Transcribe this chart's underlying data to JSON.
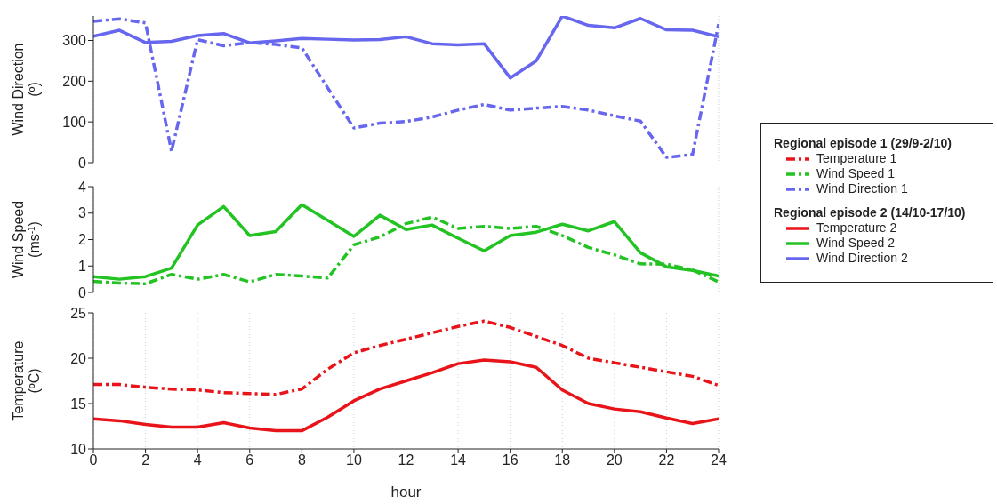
{
  "chart_data": [
    {
      "type": "line",
      "ylabel": "Wind Direction\n(º)",
      "legend_title": "Regional episode 1 (29/9-2/10)",
      "x": [
        0,
        1,
        2,
        3,
        4,
        5,
        6,
        7,
        8,
        9,
        10,
        11,
        12,
        13,
        14,
        15,
        16,
        17,
        18,
        19,
        20,
        21,
        22,
        23,
        24
      ],
      "xlim": [
        0,
        24
      ],
      "xticks": [
        0,
        2,
        4,
        6,
        8,
        10,
        12,
        14,
        16,
        18,
        20,
        22,
        24
      ],
      "ylim": [
        0,
        360
      ],
      "yticks": [
        0,
        100,
        200,
        300
      ],
      "tick_labels": "y",
      "grid": "x",
      "marker": "none",
      "legend": "right",
      "series": [
        {
          "name": "Wind Direction 1",
          "color": "#6666ee",
          "line_style": "dashed",
          "values": [
            347,
            353,
            343,
            28,
            302,
            287,
            295,
            290,
            282,
            183,
            85,
            97,
            101,
            112,
            129,
            143,
            129,
            134,
            138,
            129,
            115,
            102,
            13,
            20,
            340
          ]
        },
        {
          "name": "Wind Direction 2",
          "color": "#6666ee",
          "line_style": "solid",
          "values": [
            310,
            325,
            295,
            298,
            312,
            317,
            294,
            299,
            305,
            303,
            301,
            302,
            309,
            292,
            289,
            292,
            208,
            250,
            360,
            337,
            331,
            354,
            326,
            325,
            309
          ]
        }
      ]
    },
    {
      "type": "line",
      "ylabel": "Wind Speed\n(ms$^{-1}$)",
      "legend_title": "Regional episode 2 (14/10-17/10)",
      "x": [
        0,
        1,
        2,
        3,
        4,
        5,
        6,
        7,
        8,
        9,
        10,
        11,
        12,
        13,
        14,
        15,
        16,
        17,
        18,
        19,
        20,
        21,
        22,
        23,
        24
      ],
      "xlim": [
        0,
        24
      ],
      "xticks": [
        0,
        2,
        4,
        6,
        8,
        10,
        12,
        14,
        16,
        18,
        20,
        22,
        24
      ],
      "ylim": [
        0,
        4
      ],
      "yticks": [
        0,
        1,
        2,
        3,
        4
      ],
      "tick_labels": "y",
      "grid": "x",
      "marker": "none",
      "legend": "right",
      "series": [
        {
          "name": "Wind Speed 1",
          "color": "#22c322",
          "line_style": "dashed",
          "values": [
            0.42,
            0.35,
            0.33,
            0.68,
            0.5,
            0.68,
            0.4,
            0.68,
            0.62,
            0.55,
            1.8,
            2.1,
            2.6,
            2.85,
            2.42,
            2.5,
            2.42,
            2.5,
            2.15,
            1.7,
            1.42,
            1.08,
            1.07,
            0.85,
            0.4
          ]
        },
        {
          "name": "Wind Speed 2",
          "color": "#22c322",
          "line_style": "solid",
          "values": [
            0.6,
            0.5,
            0.6,
            0.92,
            2.55,
            3.25,
            2.15,
            2.3,
            3.32,
            2.72,
            2.12,
            2.92,
            2.38,
            2.55,
            2.05,
            1.57,
            2.15,
            2.28,
            2.58,
            2.33,
            2.68,
            1.5,
            0.97,
            0.83,
            0.62
          ]
        }
      ]
    },
    {
      "type": "line",
      "ylabel": "Temperature\n(ºC)",
      "xlabel": "hour",
      "x": [
        0,
        1,
        2,
        3,
        4,
        5,
        6,
        7,
        8,
        9,
        10,
        11,
        12,
        13,
        14,
        15,
        16,
        17,
        18,
        19,
        20,
        21,
        22,
        23,
        24
      ],
      "xlim": [
        0,
        24
      ],
      "xticks": [
        0,
        2,
        4,
        6,
        8,
        10,
        12,
        14,
        16,
        18,
        20,
        22,
        24
      ],
      "ylim": [
        10,
        25
      ],
      "yticks": [
        10,
        15,
        20,
        25
      ],
      "grid": "x",
      "marker": "none",
      "legend": "right",
      "series": [
        {
          "name": "Temperature 1",
          "color": "#e8141a",
          "line_style": "dashed",
          "values": [
            17.1,
            17.1,
            16.8,
            16.6,
            16.5,
            16.2,
            16.1,
            16.0,
            16.6,
            18.8,
            20.6,
            21.4,
            22.1,
            22.8,
            23.5,
            24.1,
            23.4,
            22.4,
            21.4,
            20.0,
            19.5,
            19.0,
            18.5,
            18.0,
            17.0
          ]
        },
        {
          "name": "Temperature 2",
          "color": "#e8141a",
          "line_style": "solid",
          "values": [
            13.3,
            13.1,
            12.7,
            12.4,
            12.4,
            12.9,
            12.3,
            12.0,
            12.0,
            13.5,
            15.3,
            16.6,
            17.5,
            18.4,
            19.4,
            19.8,
            19.6,
            19.0,
            16.5,
            15.0,
            14.4,
            14.1,
            13.4,
            12.8,
            13.3
          ]
        }
      ]
    }
  ]
}
